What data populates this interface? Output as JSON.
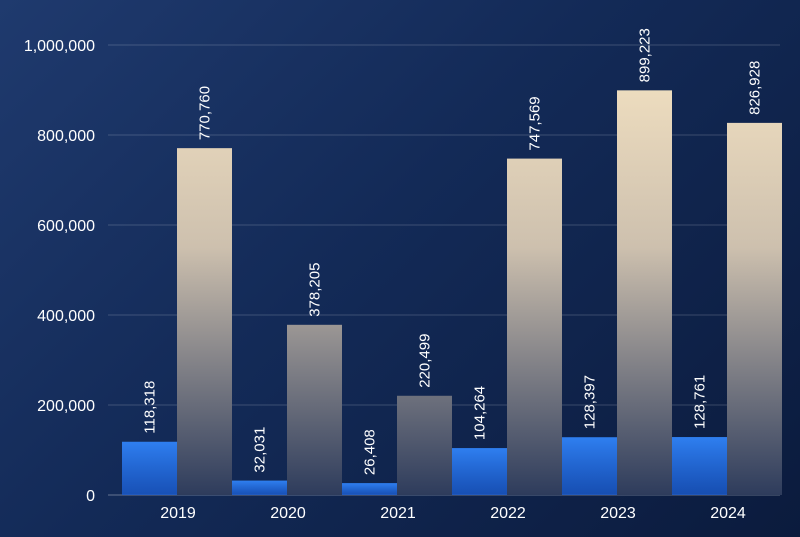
{
  "chart_data": {
    "type": "bar",
    "title": "",
    "xlabel": "",
    "ylabel": "",
    "categories": [
      "2019",
      "2020",
      "2021",
      "2022",
      "2023",
      "2024"
    ],
    "series": [
      {
        "values": [
          118318,
          32031,
          26408,
          104264,
          128397,
          128761
        ],
        "value_labels": [
          "118,318",
          "32,031",
          "26,408",
          "104,264",
          "128,397",
          "128,761"
        ],
        "color": "#2f7ff0"
      },
      {
        "values": [
          770760,
          378205,
          220499,
          747569,
          899223,
          826928
        ],
        "value_labels": [
          "770,760",
          "378,205",
          "220,499",
          "747,569",
          "899,223",
          "826,928"
        ],
        "color": "#f1dfbd"
      }
    ],
    "ylim": [
      0,
      1000000
    ],
    "yticks": [
      0,
      200000,
      400000,
      600000,
      800000,
      1000000
    ],
    "ytick_labels": [
      "0",
      "200,000",
      "400,000",
      "600,000",
      "800,000",
      "1,000,000"
    ],
    "grid": true,
    "legend": "none",
    "colors": {
      "background_start": "#1f3a6e",
      "background_end": "#0b1b3d",
      "text": "#ffffff"
    }
  }
}
